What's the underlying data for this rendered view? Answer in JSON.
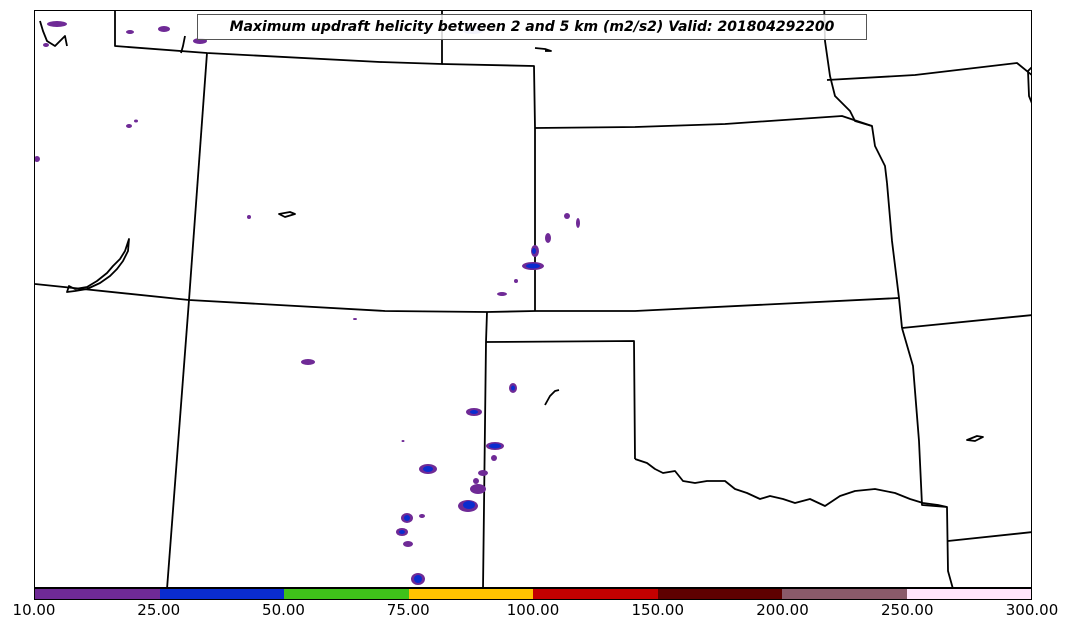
{
  "map": {
    "title": "Maximum updraft helicity between 2 and 5 km (m2/s2) Valid: 201804292200",
    "fill_colors": {
      "c10": "#6f2a96",
      "c25": "#0a2ccf"
    }
  },
  "colorbar": {
    "segments": [
      {
        "color": "#6f2a96"
      },
      {
        "color": "#0a2ccf"
      },
      {
        "color": "#3fc21a"
      },
      {
        "color": "#ffc400"
      },
      {
        "color": "#c40000"
      },
      {
        "color": "#5e0000"
      },
      {
        "color": "#8a5a6a"
      },
      {
        "color": "#ffe4fb"
      }
    ],
    "ticks": [
      "10.00",
      "25.00",
      "50.00",
      "75.00",
      "100.00",
      "150.00",
      "200.00",
      "250.00",
      "300.00"
    ]
  }
}
